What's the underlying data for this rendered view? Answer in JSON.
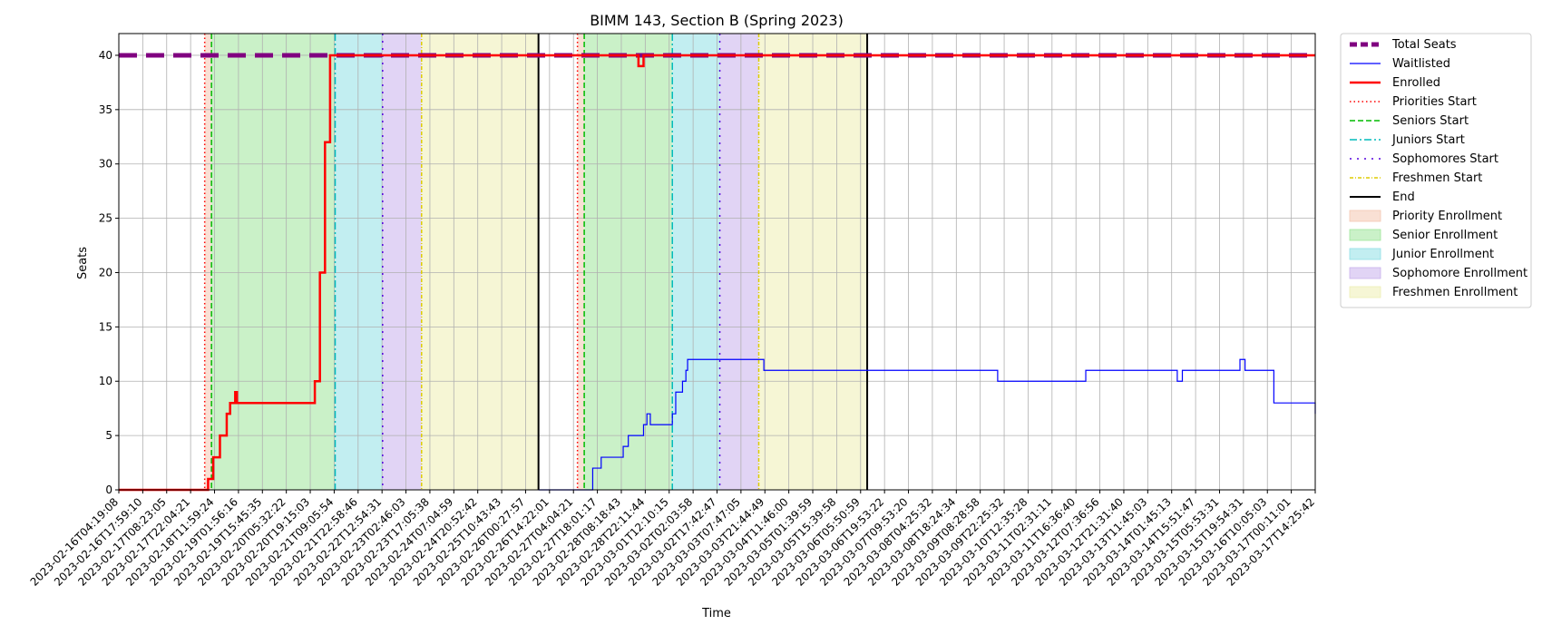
{
  "chart_data": {
    "type": "line",
    "title": "BIMM 143, Section B (Spring 2023)",
    "xlabel": "Time",
    "ylabel": "Seats",
    "ylim": [
      0,
      42
    ],
    "yticks": [
      0,
      5,
      10,
      15,
      20,
      25,
      30,
      35,
      40
    ],
    "grid": true,
    "legend_position": "outside-right",
    "xlim": [
      "2023-02-16T04:19:08",
      "2023-03-17T14:25:42"
    ],
    "xtick_labels": [
      "2023-02-16T04:19:08",
      "2023-02-16T17:59:10",
      "2023-02-17T08:23:05",
      "2023-02-17T22:04:21",
      "2023-02-18T11:59:24",
      "2023-02-19T01:56:16",
      "2023-02-19T15:45:35",
      "2023-02-20T05:32:22",
      "2023-02-20T19:15:03",
      "2023-02-21T09:05:54",
      "2023-02-21T22:58:46",
      "2023-02-22T12:54:31",
      "2023-02-23T02:46:03",
      "2023-02-23T17:05:38",
      "2023-02-24T07:04:59",
      "2023-02-24T20:52:42",
      "2023-02-25T10:43:43",
      "2023-02-26T00:27:57",
      "2023-02-26T14:22:01",
      "2023-02-27T04:04:21",
      "2023-02-27T18:01:17",
      "2023-02-28T08:18:43",
      "2023-02-28T22:11:44",
      "2023-03-01T12:10:15",
      "2023-03-02T02:03:58",
      "2023-03-02T17:42:47",
      "2023-03-03T07:47:05",
      "2023-03-03T21:44:49",
      "2023-03-04T11:46:00",
      "2023-03-05T01:39:59",
      "2023-03-05T15:39:58",
      "2023-03-06T05:50:59",
      "2023-03-06T19:53:22",
      "2023-03-07T09:53:20",
      "2023-03-08T04:25:32",
      "2023-03-08T18:24:34",
      "2023-03-09T08:28:58",
      "2023-03-09T22:25:32",
      "2023-03-10T12:35:28",
      "2023-03-11T02:31:11",
      "2023-03-11T16:36:40",
      "2023-03-12T07:36:56",
      "2023-03-12T21:31:40",
      "2023-03-13T11:45:03",
      "2023-03-14T01:45:13",
      "2023-03-14T15:51:47",
      "2023-03-15T05:53:31",
      "2023-03-15T19:54:31",
      "2023-03-16T10:05:03",
      "2023-03-17T00:11:01",
      "2023-03-17T14:25:42"
    ],
    "periods": [
      {
        "name": "Priority Enrollment",
        "color": "#f4c7b1",
        "ranges": [
          [
            "2023-02-18T07:00:00",
            "2023-02-18T11:00:00"
          ],
          [
            "2023-02-27T11:00:00",
            "2023-02-27T15:00:00"
          ]
        ]
      },
      {
        "name": "Senior Enrollment",
        "color": "#9fe69a",
        "ranges": [
          [
            "2023-02-18T11:00:00",
            "2023-02-21T12:00:00"
          ],
          [
            "2023-02-27T15:00:00",
            "2023-03-01T19:00:00"
          ]
        ]
      },
      {
        "name": "Junior Enrollment",
        "color": "#8fe0e6",
        "ranges": [
          [
            "2023-02-21T12:00:00",
            "2023-02-22T16:00:00"
          ],
          [
            "2023-03-01T19:00:00",
            "2023-03-02T23:00:00"
          ]
        ]
      },
      {
        "name": "Sophomore Enrollment",
        "color": "#c9b0ec",
        "ranges": [
          [
            "2023-02-22T16:00:00",
            "2023-02-23T15:00:00"
          ],
          [
            "2023-03-02T23:00:00",
            "2023-03-03T22:00:00"
          ]
        ]
      },
      {
        "name": "Freshmen Enrollment",
        "color": "#eeefb3",
        "ranges": [
          [
            "2023-02-23T15:00:00",
            "2023-02-26T12:00:00"
          ],
          [
            "2023-03-03T22:00:00",
            "2023-03-06T14:00:00"
          ]
        ]
      }
    ],
    "markers": [
      {
        "name": "Priorities Start",
        "color": "#ff0000",
        "dash": "1.5,3",
        "times": [
          "2023-02-18T07:00:00",
          "2023-02-27T11:00:00"
        ]
      },
      {
        "name": "Seniors Start",
        "color": "#00bb00",
        "dash": "6,3",
        "times": [
          "2023-02-18T11:00:00",
          "2023-02-27T15:00:00"
        ]
      },
      {
        "name": "Juniors Start",
        "color": "#00bbbb",
        "dash": "8,3,2,3",
        "times": [
          "2023-02-21T12:00:00",
          "2023-03-01T19:00:00"
        ]
      },
      {
        "name": "Sophomores Start",
        "color": "#5500dd",
        "dash": "2,6",
        "times": [
          "2023-02-22T16:00:00",
          "2023-03-02T23:00:00"
        ]
      },
      {
        "name": "Freshmen Start",
        "color": "#ddcc00",
        "dash": "4,2,1,2",
        "times": [
          "2023-02-23T15:00:00",
          "2023-03-03T22:00:00"
        ]
      },
      {
        "name": "End",
        "color": "#000000",
        "dash": "",
        "times": [
          "2023-02-26T12:00:00",
          "2023-03-06T14:00:00"
        ]
      }
    ],
    "series": [
      {
        "name": "Total Seats",
        "color": "#800080",
        "style": "total",
        "points": [
          [
            "2023-02-16T04:19:08",
            40
          ],
          [
            "2023-03-17T14:25:42",
            40
          ]
        ]
      },
      {
        "name": "Waitlisted",
        "color": "#0000ff",
        "style": "thin",
        "points": [
          [
            "2023-02-26T12:00:00",
            0
          ],
          [
            "2023-02-27T19:00:00",
            0
          ],
          [
            "2023-02-27T20:00:00",
            2
          ],
          [
            "2023-02-28T01:00:00",
            3
          ],
          [
            "2023-02-28T14:00:00",
            4
          ],
          [
            "2023-02-28T17:00:00",
            5
          ],
          [
            "2023-03-01T02:00:00",
            6
          ],
          [
            "2023-03-01T04:00:00",
            7
          ],
          [
            "2023-03-01T06:00:00",
            6
          ],
          [
            "2023-03-01T19:00:00",
            7
          ],
          [
            "2023-03-01T21:00:00",
            9
          ],
          [
            "2023-03-02T01:00:00",
            10
          ],
          [
            "2023-03-02T03:00:00",
            11
          ],
          [
            "2023-03-02T04:00:00",
            12
          ],
          [
            "2023-03-04T01:00:00",
            11
          ],
          [
            "2023-03-09T19:00:00",
            10
          ],
          [
            "2023-03-11T23:00:00",
            11
          ],
          [
            "2023-03-14T05:00:00",
            10
          ],
          [
            "2023-03-14T08:00:00",
            11
          ],
          [
            "2023-03-15T18:00:00",
            12
          ],
          [
            "2023-03-15T21:00:00",
            11
          ],
          [
            "2023-03-16T14:00:00",
            8
          ],
          [
            "2023-03-17T13:00:00",
            8
          ],
          [
            "2023-03-17T14:25:42",
            7
          ]
        ]
      },
      {
        "name": "Enrolled",
        "color": "#ff0000",
        "style": "thick",
        "points": [
          [
            "2023-02-16T04:19:08",
            0
          ],
          [
            "2023-02-18T08:00:00",
            0
          ],
          [
            "2023-02-18T09:00:00",
            1
          ],
          [
            "2023-02-18T12:00:00",
            3
          ],
          [
            "2023-02-18T16:00:00",
            5
          ],
          [
            "2023-02-18T20:00:00",
            7
          ],
          [
            "2023-02-18T22:00:00",
            8
          ],
          [
            "2023-02-19T01:00:00",
            9
          ],
          [
            "2023-02-19T02:00:00",
            8
          ],
          [
            "2023-02-20T19:00:00",
            8
          ],
          [
            "2023-02-21T00:00:00",
            10
          ],
          [
            "2023-02-21T03:00:00",
            20
          ],
          [
            "2023-02-21T06:00:00",
            32
          ],
          [
            "2023-02-21T09:00:00",
            40
          ],
          [
            "2023-02-28T22:00:00",
            40
          ],
          [
            "2023-02-28T23:00:00",
            39
          ],
          [
            "2023-03-01T02:00:00",
            40
          ],
          [
            "2023-03-17T14:25:42",
            40
          ]
        ]
      }
    ],
    "legend": [
      {
        "label": "Total Seats",
        "kind": "line",
        "color": "#800080",
        "width": 5,
        "dash": "8,4"
      },
      {
        "label": "Waitlisted",
        "kind": "line",
        "color": "#0000ff",
        "width": 1.2,
        "dash": ""
      },
      {
        "label": "Enrolled",
        "kind": "line",
        "color": "#ff0000",
        "width": 2.5,
        "dash": ""
      },
      {
        "label": "Priorities Start",
        "kind": "line",
        "color": "#ff0000",
        "width": 1.5,
        "dash": "1.5,3"
      },
      {
        "label": "Seniors Start",
        "kind": "line",
        "color": "#00bb00",
        "width": 1.5,
        "dash": "6,3"
      },
      {
        "label": "Juniors Start",
        "kind": "line",
        "color": "#00bbbb",
        "width": 1.5,
        "dash": "8,3,2,3"
      },
      {
        "label": "Sophomores Start",
        "kind": "line",
        "color": "#5500dd",
        "width": 1.5,
        "dash": "2,6"
      },
      {
        "label": "Freshmen Start",
        "kind": "line",
        "color": "#ddcc00",
        "width": 1.5,
        "dash": "4,2,1,2"
      },
      {
        "label": "End",
        "kind": "line",
        "color": "#000000",
        "width": 2,
        "dash": ""
      },
      {
        "label": "Priority Enrollment",
        "kind": "patch",
        "color": "#f4c7b1"
      },
      {
        "label": "Senior Enrollment",
        "kind": "patch",
        "color": "#9fe69a"
      },
      {
        "label": "Junior Enrollment",
        "kind": "patch",
        "color": "#8fe0e6"
      },
      {
        "label": "Sophomore Enrollment",
        "kind": "patch",
        "color": "#c9b0ec"
      },
      {
        "label": "Freshmen Enrollment",
        "kind": "patch",
        "color": "#eeefb3"
      }
    ]
  }
}
